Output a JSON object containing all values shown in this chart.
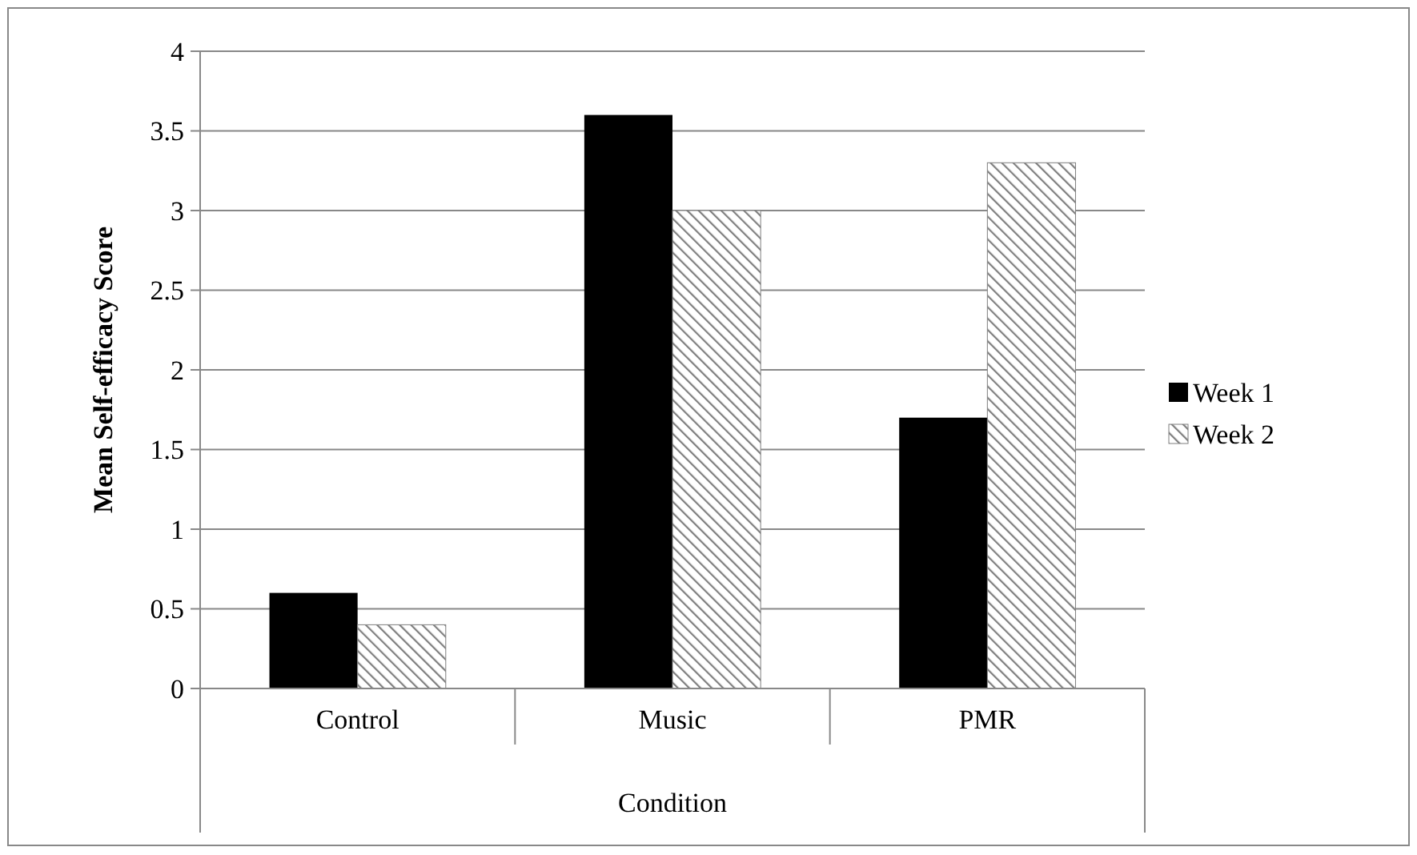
{
  "chart_data": {
    "type": "bar",
    "xlabel": "Condition",
    "ylabel": "Mean Self-efficacy Score",
    "categories": [
      "Control",
      "Music",
      "PMR"
    ],
    "series": [
      {
        "name": "Week 1",
        "color": "#000000",
        "values": [
          0.6,
          3.6,
          1.7
        ]
      },
      {
        "name": "Week 2",
        "color": "#7f7f7f",
        "values": [
          0.4,
          3.0,
          3.3
        ]
      }
    ],
    "ylim": [
      0,
      4
    ],
    "yticks": [
      0,
      0.5,
      1,
      1.5,
      2,
      2.5,
      3,
      3.5,
      4
    ],
    "grid": "y",
    "legend": "right"
  }
}
